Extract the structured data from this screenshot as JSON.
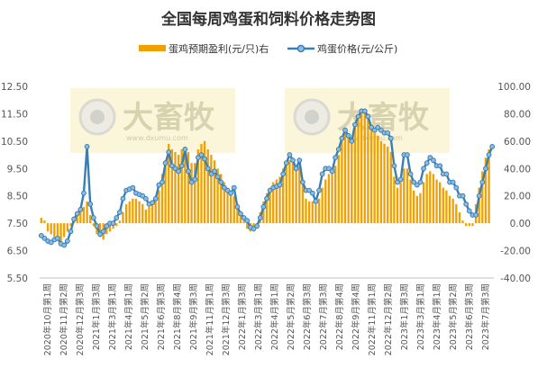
{
  "chart_data": {
    "type": "bar+line",
    "title": "全国每周鸡蛋和饲料价格走势图",
    "legend": {
      "position": "top",
      "entries": [
        "蛋鸡预期盈利(元/只)右",
        "鸡蛋价格(元/公斤)"
      ]
    },
    "watermark": {
      "text": "大畜牧",
      "sub": "www.dxumu.com"
    },
    "grid": false,
    "colors": {
      "bar": "#F0A000",
      "line": "#3A7EB8",
      "marker_fill": "#8ABDE2"
    },
    "left_axis": {
      "ylim": [
        5.5,
        12.5
      ],
      "ticks": [
        "5.50",
        "6.50",
        "7.50",
        "8.50",
        "9.50",
        "10.50",
        "11.50",
        "12.50"
      ]
    },
    "right_axis": {
      "ylim": [
        -40,
        100
      ],
      "ticks": [
        "-40.00",
        "-20.00",
        "0.00",
        "20.00",
        "40.00",
        "60.00",
        "80.00",
        "100.00"
      ]
    },
    "x_tick_labels": [
      "2020年10月第1周",
      "2020年11月第2周",
      "2020年12月第3周",
      "2021年1月第3周",
      "2021年3月第1周",
      "2021年4月第1周",
      "2021年5月第2周",
      "2021年6月第3周",
      "2021年8月第4周",
      "2021年9月第3周",
      "2021年11月第1周",
      "2021年12月第3周",
      "2022年1月第3周",
      "2022年3月第1周",
      "2022年4月第1周",
      "2022年5月第2周",
      "2022年6月第3周",
      "2022年7月第3周",
      "2022年8月第4周",
      "2022年9月第4周",
      "2022年11月第1周",
      "2022年12月第2周",
      "2023年1月第3周",
      "2023年3月第1周",
      "2023年4月第1周",
      "2023年5月第2周",
      "2023年6月第3周",
      "2023年7月第3周"
    ],
    "series": [
      {
        "name": "鸡蛋价格(元/公斤)",
        "axis": "left",
        "type": "line",
        "values": [
          7.05,
          6.95,
          6.85,
          6.8,
          6.9,
          6.95,
          6.75,
          6.7,
          6.85,
          7.2,
          7.65,
          7.85,
          8.0,
          8.6,
          10.3,
          8.2,
          7.7,
          7.4,
          7.1,
          7.2,
          7.4,
          7.5,
          7.5,
          7.7,
          7.9,
          8.4,
          8.7,
          8.75,
          8.8,
          8.6,
          8.55,
          8.5,
          8.4,
          8.2,
          8.25,
          8.4,
          8.9,
          9.0,
          9.7,
          10.1,
          9.6,
          9.5,
          9.4,
          9.6,
          10.2,
          9.4,
          9.0,
          9.1,
          9.9,
          10.0,
          9.85,
          9.5,
          9.3,
          9.4,
          9.2,
          9.0,
          8.8,
          8.7,
          8.6,
          8.8,
          8.1,
          7.85,
          7.7,
          7.6,
          7.35,
          7.3,
          7.4,
          7.7,
          8.1,
          8.4,
          8.7,
          8.8,
          8.85,
          8.9,
          9.3,
          9.7,
          10.0,
          9.8,
          9.5,
          9.8,
          9.0,
          8.7,
          8.7,
          8.6,
          8.3,
          8.7,
          9.3,
          9.5,
          9.5,
          9.4,
          9.9,
          10.2,
          10.6,
          10.9,
          10.7,
          10.5,
          11.1,
          11.4,
          11.6,
          11.6,
          11.4,
          11.0,
          10.9,
          11.0,
          10.9,
          10.8,
          10.8,
          10.6,
          9.6,
          9.0,
          9.1,
          10.0,
          10.0,
          9.3,
          9.0,
          8.9,
          9.0,
          9.5,
          9.7,
          9.9,
          9.8,
          9.6,
          9.6,
          9.3,
          9.3,
          9.0,
          9.0,
          8.8,
          8.5,
          8.5,
          8.2,
          7.95,
          7.8,
          7.8,
          8.5,
          9.0,
          9.5,
          10.0,
          10.3
        ]
      },
      {
        "name": "蛋鸡预期盈利(元/只)右",
        "axis": "right",
        "type": "bar",
        "values": [
          4,
          2,
          -6,
          -8,
          -10,
          -12,
          -14,
          -10,
          -6,
          -2,
          4,
          6,
          8,
          12,
          16,
          6,
          -2,
          -8,
          -10,
          -12,
          -8,
          -6,
          -4,
          -2,
          2,
          8,
          14,
          16,
          18,
          18,
          16,
          14,
          10,
          12,
          14,
          18,
          24,
          36,
          42,
          58,
          54,
          52,
          50,
          54,
          56,
          52,
          44,
          44,
          54,
          58,
          60,
          54,
          50,
          46,
          40,
          36,
          30,
          26,
          22,
          20,
          14,
          8,
          2,
          -4,
          -6,
          -6,
          -2,
          8,
          16,
          22,
          26,
          30,
          32,
          34,
          40,
          44,
          46,
          44,
          40,
          42,
          28,
          18,
          16,
          16,
          14,
          18,
          26,
          32,
          36,
          40,
          42,
          50,
          60,
          66,
          64,
          60,
          70,
          76,
          80,
          82,
          80,
          72,
          66,
          64,
          60,
          58,
          56,
          52,
          34,
          26,
          30,
          40,
          40,
          32,
          24,
          20,
          22,
          30,
          36,
          38,
          36,
          32,
          30,
          26,
          24,
          20,
          18,
          14,
          8,
          2,
          -2,
          -2,
          -2,
          14,
          26,
          38,
          48,
          54
        ]
      }
    ]
  }
}
